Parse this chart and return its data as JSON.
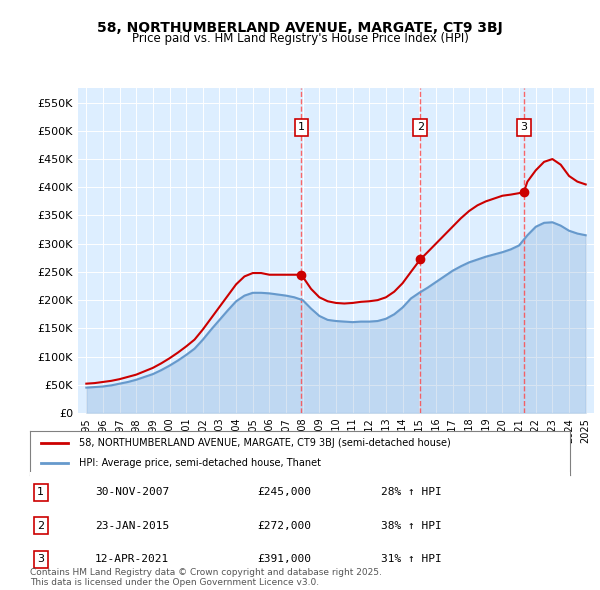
{
  "title": "58, NORTHUMBERLAND AVENUE, MARGATE, CT9 3BJ",
  "subtitle": "Price paid vs. HM Land Registry's House Price Index (HPI)",
  "property_label": "58, NORTHUMBERLAND AVENUE, MARGATE, CT9 3BJ (semi-detached house)",
  "hpi_label": "HPI: Average price, semi-detached house, Thanet",
  "footnote": "Contains HM Land Registry data © Crown copyright and database right 2025.\nThis data is licensed under the Open Government Licence v3.0.",
  "sales": [
    {
      "num": 1,
      "date": "30-NOV-2007",
      "price": 245000,
      "year": 2007.92,
      "pct": "28%",
      "dir": "↑"
    },
    {
      "num": 2,
      "date": "23-JAN-2015",
      "price": 272000,
      "year": 2015.06,
      "pct": "38%",
      "dir": "↑"
    },
    {
      "num": 3,
      "date": "12-APR-2021",
      "price": 391000,
      "year": 2021.28,
      "pct": "31%",
      "dir": "↑"
    }
  ],
  "property_color": "#cc0000",
  "hpi_color": "#6699cc",
  "sale_marker_color": "#cc0000",
  "dashed_line_color": "#ff4444",
  "background_chart": "#ddeeff",
  "ylim": [
    0,
    575000
  ],
  "xlim_start": 1994.5,
  "xlim_end": 2025.5,
  "yticks": [
    0,
    50000,
    100000,
    150000,
    200000,
    250000,
    300000,
    350000,
    400000,
    450000,
    500000,
    550000
  ],
  "ytick_labels": [
    "£0",
    "£50K",
    "£100K",
    "£150K",
    "£200K",
    "£250K",
    "£300K",
    "£350K",
    "£400K",
    "£450K",
    "£500K",
    "£550K"
  ],
  "xticks": [
    1995,
    1996,
    1997,
    1998,
    1999,
    2000,
    2001,
    2002,
    2003,
    2004,
    2005,
    2006,
    2007,
    2008,
    2009,
    2010,
    2011,
    2012,
    2013,
    2014,
    2015,
    2016,
    2017,
    2018,
    2019,
    2020,
    2021,
    2022,
    2023,
    2024,
    2025
  ],
  "property_line": {
    "years": [
      1995.0,
      1995.5,
      1996.0,
      1996.5,
      1997.0,
      1997.5,
      1998.0,
      1998.5,
      1999.0,
      1999.5,
      2000.0,
      2000.5,
      2001.0,
      2001.5,
      2002.0,
      2002.5,
      2003.0,
      2003.5,
      2004.0,
      2004.5,
      2005.0,
      2005.5,
      2006.0,
      2006.5,
      2007.0,
      2007.5,
      2007.92,
      2008.5,
      2009.0,
      2009.5,
      2010.0,
      2010.5,
      2011.0,
      2011.5,
      2012.0,
      2012.5,
      2013.0,
      2013.5,
      2014.0,
      2014.5,
      2015.06,
      2015.5,
      2016.0,
      2016.5,
      2017.0,
      2017.5,
      2018.0,
      2018.5,
      2019.0,
      2019.5,
      2020.0,
      2020.5,
      2021.28,
      2021.5,
      2022.0,
      2022.5,
      2023.0,
      2023.5,
      2024.0,
      2024.5,
      2025.0
    ],
    "values": [
      52000,
      53000,
      55000,
      57000,
      60000,
      64000,
      68000,
      74000,
      80000,
      88000,
      97000,
      107000,
      118000,
      130000,
      148000,
      168000,
      188000,
      208000,
      228000,
      242000,
      248000,
      248000,
      245000,
      245000,
      245000,
      245000,
      245000,
      220000,
      205000,
      198000,
      195000,
      194000,
      195000,
      197000,
      198000,
      200000,
      205000,
      215000,
      230000,
      250000,
      272000,
      285000,
      300000,
      315000,
      330000,
      345000,
      358000,
      368000,
      375000,
      380000,
      385000,
      387000,
      391000,
      410000,
      430000,
      445000,
      450000,
      440000,
      420000,
      410000,
      405000
    ]
  },
  "hpi_line": {
    "years": [
      1995.0,
      1995.5,
      1996.0,
      1996.5,
      1997.0,
      1997.5,
      1998.0,
      1998.5,
      1999.0,
      1999.5,
      2000.0,
      2000.5,
      2001.0,
      2001.5,
      2002.0,
      2002.5,
      2003.0,
      2003.5,
      2004.0,
      2004.5,
      2005.0,
      2005.5,
      2006.0,
      2006.5,
      2007.0,
      2007.5,
      2008.0,
      2008.5,
      2009.0,
      2009.5,
      2010.0,
      2010.5,
      2011.0,
      2011.5,
      2012.0,
      2012.5,
      2013.0,
      2013.5,
      2014.0,
      2014.5,
      2015.0,
      2015.5,
      2016.0,
      2016.5,
      2017.0,
      2017.5,
      2018.0,
      2018.5,
      2019.0,
      2019.5,
      2020.0,
      2020.5,
      2021.0,
      2021.5,
      2022.0,
      2022.5,
      2023.0,
      2023.5,
      2024.0,
      2024.5,
      2025.0
    ],
    "values": [
      45000,
      46000,
      47000,
      49000,
      52000,
      55000,
      59000,
      64000,
      69000,
      76000,
      84000,
      93000,
      103000,
      114000,
      130000,
      148000,
      165000,
      182000,
      198000,
      208000,
      213000,
      213000,
      212000,
      210000,
      208000,
      205000,
      200000,
      185000,
      172000,
      165000,
      163000,
      162000,
      161000,
      162000,
      162000,
      163000,
      167000,
      175000,
      187000,
      203000,
      213000,
      222000,
      232000,
      242000,
      252000,
      260000,
      267000,
      272000,
      277000,
      281000,
      285000,
      290000,
      297000,
      315000,
      330000,
      337000,
      338000,
      332000,
      323000,
      318000,
      315000
    ]
  }
}
